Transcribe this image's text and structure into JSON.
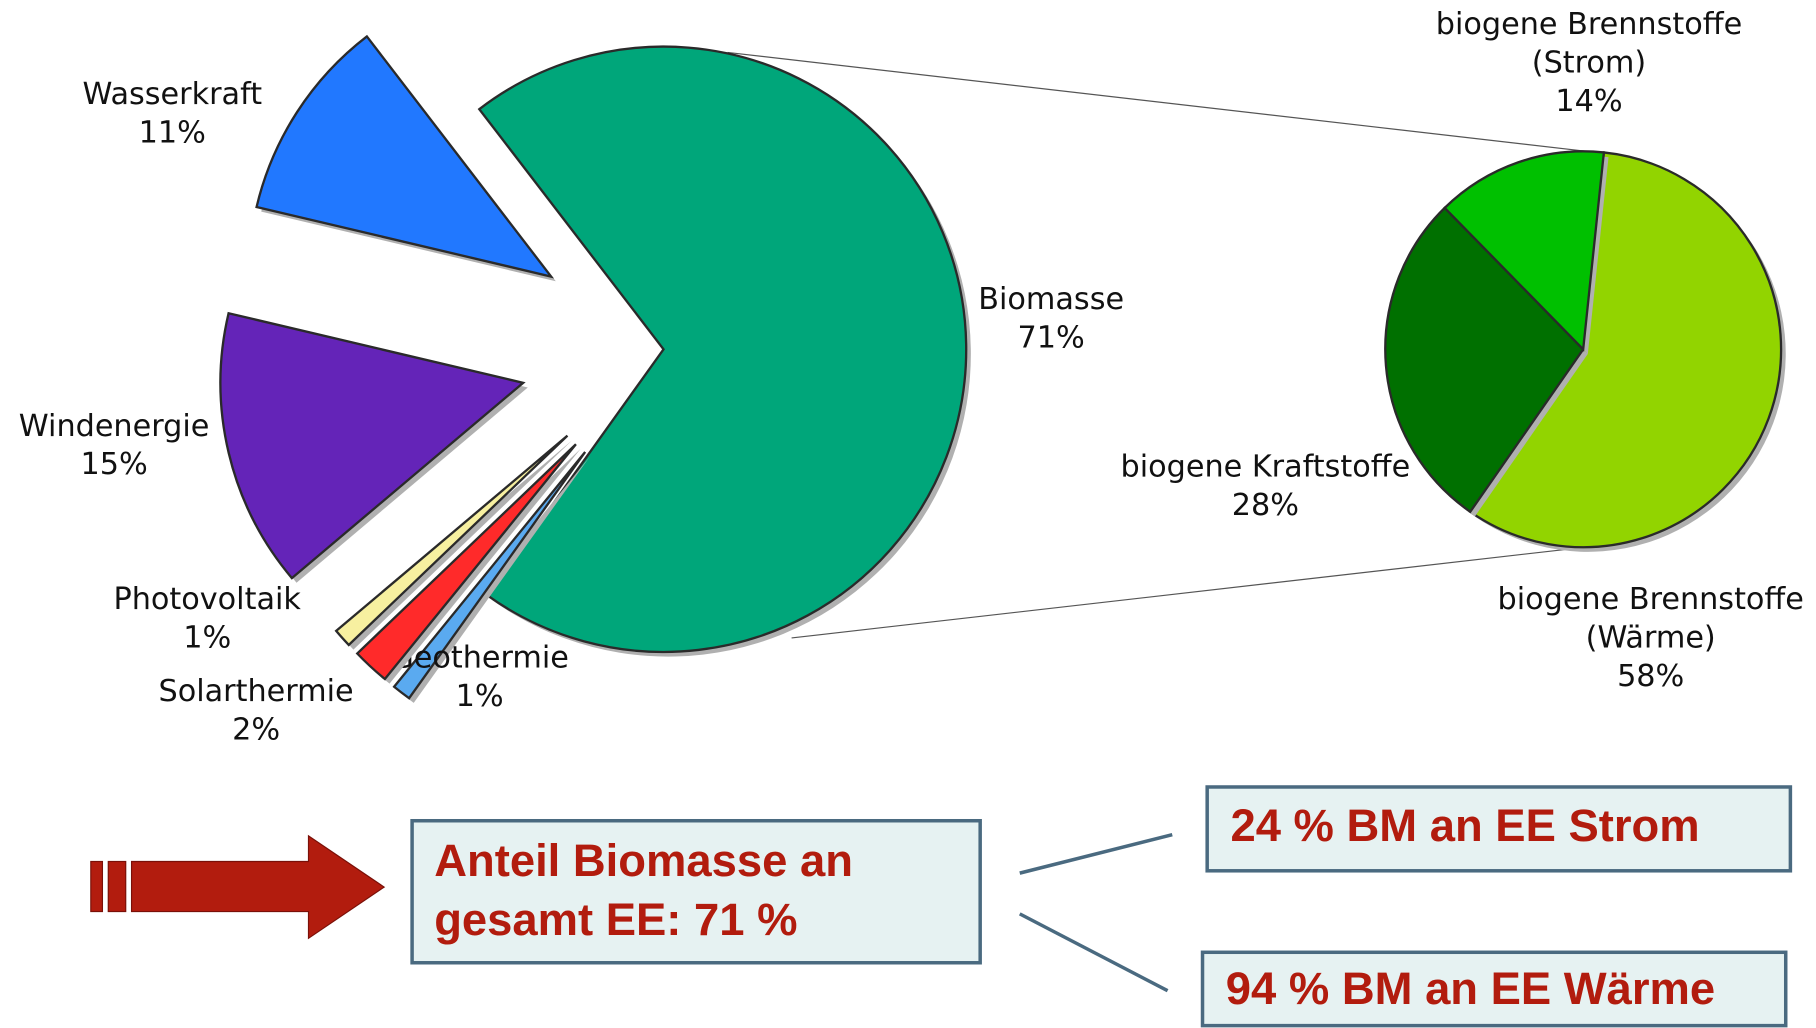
{
  "chart_data": [
    {
      "type": "pie",
      "categories": [
        "Biomasse",
        "Geothermie",
        "Solarthermie",
        "Photovoltaik",
        "Windenergie",
        "Wasserkraft"
      ],
      "values": [
        71,
        1,
        2,
        1,
        15,
        11
      ],
      "value_labels": [
        "71%",
        "1%",
        "2%",
        "1%",
        "15%",
        "11%"
      ],
      "colors": [
        "#00a67a",
        "#5aaaf0",
        "#ff2a2a",
        "#f7f0a0",
        "#6424b8",
        "#2178ff"
      ]
    },
    {
      "type": "pie",
      "categories": [
        "biogene Brennstoffe (Wärme)",
        "biogene Kraftstoffe",
        "biogene Brennstoffe (Strom)"
      ],
      "values": [
        58,
        28,
        14
      ],
      "value_labels": [
        "58%",
        "28%",
        "14%"
      ],
      "colors": [
        "#92d400",
        "#007000",
        "#00c000"
      ]
    }
  ],
  "annotations": {
    "summary": [
      "Anteil Biomasse an",
      "gesamt EE: 71 %"
    ],
    "strom": "24 % BM an EE Strom",
    "waerme": "94 % BM an EE Wärme"
  }
}
